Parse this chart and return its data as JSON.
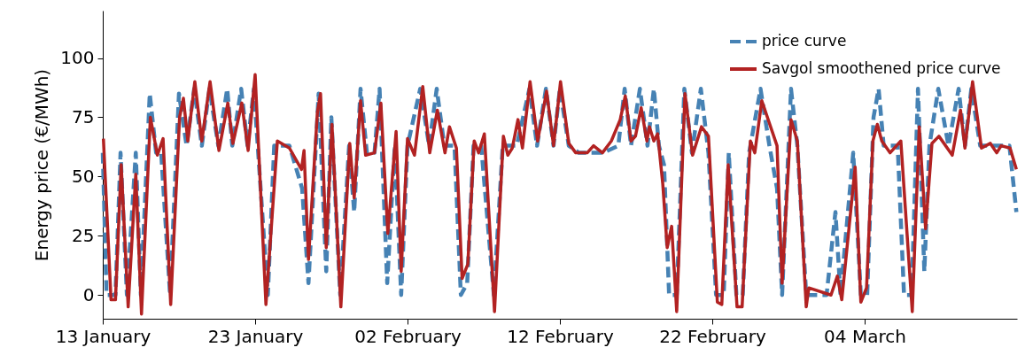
{
  "chart_data": {
    "type": "line",
    "ylabel": "Energy price (€/MWh)",
    "ylim": [
      -10,
      120
    ],
    "yticks": [
      0,
      25,
      50,
      75,
      100
    ],
    "xlim": [
      "--01-13",
      "--03-14"
    ],
    "xticks": [
      {
        "value": "--01-13",
        "label": "13 January"
      },
      {
        "value": "--01-23",
        "label": "23 January"
      },
      {
        "value": "--02-02",
        "label": "02 February"
      },
      {
        "value": "--02-12",
        "label": "12 February"
      },
      {
        "value": "--02-22",
        "label": "22 February"
      },
      {
        "value": "--03-04",
        "label": "04 March"
      }
    ],
    "grid": false,
    "legend": "top right",
    "marker": "none",
    "series": [
      {
        "name": "price curve",
        "color": "#4682b4",
        "line_style": "dashed",
        "x": [
          "--01-13T00:00",
          "--01-13T06:00",
          "--01-13T20:00",
          "--01-14T04:00",
          "--01-14T14:00",
          "--01-15T04:00",
          "--01-15T12:00",
          "--01-16T02:00",
          "--01-16T12:00",
          "--01-16T20:00",
          "--01-17T10:00",
          "--01-18T00:00",
          "--01-18T12:00",
          "--01-19T00:00",
          "--01-19T12:00",
          "--01-20T00:00",
          "--01-20T14:00",
          "--01-21T04:00",
          "--01-21T12:00",
          "--01-22T02:00",
          "--01-22T12:00",
          "--01-22T22:00",
          "--01-23T20:00",
          "--01-24T06:00",
          "--01-25T06:00",
          "--01-26T02:00",
          "--01-26T12:00",
          "--01-27T04:00",
          "--01-27T16:00",
          "--01-28T00:00",
          "--01-28T14:00",
          "--01-29T04:00",
          "--01-29T12:00",
          "--01-29T22:00",
          "--01-30T08:00",
          "--01-30T20:00",
          "--01-31T04:00",
          "--01-31T16:00",
          "--02-01T04:00",
          "--02-01T14:00",
          "--02-02T00:00",
          "--02-02T20:00",
          "--02-03T10:00",
          "--02-03T22:00",
          "--02-04T10:00",
          "--02-05T02:00",
          "--02-05T12:00",
          "--02-05T22:00",
          "--02-06T08:00",
          "--02-06T20:00",
          "--02-07T16:00",
          "--02-08T06:00",
          "--02-09T04:00",
          "--02-10T00:00",
          "--02-10T12:00",
          "--02-11T02:00",
          "--02-11T14:00",
          "--02-12T00:00",
          "--02-12T14:00",
          "--02-13T06:00",
          "--02-14T20:00",
          "--02-15T20:00",
          "--02-16T06:00",
          "--02-16T16:00",
          "--02-17T06:00",
          "--02-17T18:00",
          "--02-18T04:00",
          "--02-18T12:00",
          "--02-18T20:00",
          "--02-19T04:00",
          "--02-19T16:00",
          "--02-20T04:00",
          "--02-20T16:00",
          "--02-21T06:00",
          "--02-21T18:00",
          "--02-22T06:00",
          "--02-22T18:00",
          "--02-23T02:00",
          "--02-23T14:00",
          "--02-24T00:00",
          "--02-24T10:00",
          "--02-25T04:00",
          "--02-25T18:00",
          "--02-26T06:00",
          "--02-26T14:00",
          "--02-27T04:00",
          "--02-27T14:00",
          "--02-28T04:00",
          "--02-28T16:00",
          "--03-01T12:00",
          "--03-02T02:00",
          "--03-02T10:00",
          "--03-03T06:00",
          "--03-03T18:00",
          "--03-04T04:00",
          "--03-04T14:00",
          "--03-04T22:00",
          "--03-05T06:00",
          "--03-06T04:00",
          "--03-06T14:00",
          "--03-07T02:00",
          "--03-07T12:00",
          "--03-07T22:00",
          "--03-08T06:00",
          "--03-08T20:00",
          "--03-09T12:00",
          "--03-10T04:00",
          "--03-10T14:00",
          "--03-11T00:00",
          "--03-11T14:00",
          "--03-12T20:00",
          "--03-13T12:00",
          "--03-13T23:00"
        ],
        "values": [
          60,
          0,
          0,
          60,
          0,
          60,
          0,
          85,
          60,
          60,
          0,
          85,
          63,
          87,
          63,
          87,
          63,
          87,
          63,
          87,
          63,
          87,
          0,
          63,
          63,
          45,
          5,
          85,
          10,
          75,
          0,
          63,
          35,
          87,
          60,
          60,
          87,
          5,
          63,
          0,
          63,
          87,
          63,
          87,
          63,
          63,
          0,
          5,
          63,
          63,
          0,
          63,
          63,
          87,
          63,
          87,
          63,
          87,
          63,
          60,
          60,
          63,
          87,
          63,
          87,
          63,
          87,
          63,
          55,
          0,
          0,
          87,
          60,
          87,
          60,
          0,
          0,
          60,
          0,
          0,
          60,
          87,
          63,
          45,
          0,
          87,
          63,
          0,
          0,
          0,
          35,
          0,
          60,
          0,
          0,
          75,
          87,
          63,
          63,
          0,
          0,
          87,
          10,
          63,
          87,
          63,
          87,
          63,
          87,
          63,
          63,
          63,
          35
        ]
      },
      {
        "name": "Savgol smoothened price curve",
        "color": "#b22222",
        "line_style": "solid",
        "x": [
          "--01-13T01:00",
          "--01-13T13:00",
          "--01-13T20:00",
          "--01-14T05:00",
          "--01-14T16:00",
          "--01-15T04:00",
          "--01-15T13:00",
          "--01-16T03:00",
          "--01-16T14:00",
          "--01-16T23:00",
          "--01-17T11:00",
          "--01-18T01:00",
          "--01-18T07:00",
          "--01-18T14:00",
          "--01-19T01:00",
          "--01-19T12:00",
          "--01-20T01:00",
          "--01-20T15:00",
          "--01-21T05:00",
          "--01-21T13:00",
          "--01-22T03:00",
          "--01-22T13:00",
          "--01-23T00:00",
          "--01-23T17:00",
          "--01-24T11:00",
          "--01-25T06:00",
          "--01-26T01:00",
          "--01-26T05:00",
          "--01-26T12:00",
          "--01-27T02:00",
          "--01-27T07:00",
          "--01-27T16:00",
          "--01-28T01:00",
          "--01-28T15:00",
          "--01-29T05:00",
          "--01-29T12:00",
          "--01-29T22:00",
          "--01-30T06:00",
          "--01-30T20:00",
          "--01-31T06:00",
          "--01-31T17:00",
          "--02-01T06:00",
          "--02-01T14:00",
          "--02-02T00:00",
          "--02-02T11:00",
          "--02-03T00:00",
          "--02-03T11:00",
          "--02-03T23:00",
          "--02-04T11:00",
          "--02-04T18:00",
          "--02-05T05:00",
          "--02-05T14:00",
          "--02-05T23:00",
          "--02-06T09:00",
          "--02-06T16:00",
          "--02-07T01:00",
          "--02-07T17:00",
          "--02-08T07:00",
          "--02-08T14:00",
          "--02-08T21:00",
          "--02-09T06:00",
          "--02-09T13:00",
          "--02-10T01:00",
          "--02-10T13:00",
          "--02-11T03:00",
          "--02-11T14:00",
          "--02-12T01:00",
          "--02-12T14:00",
          "--02-13T01:00",
          "--02-13T19:00",
          "--02-14T05:00",
          "--02-14T19:00",
          "--02-15T09:00",
          "--02-15T23:00",
          "--02-16T07:00",
          "--02-16T16:00",
          "--02-16T23:00",
          "--02-17T08:00",
          "--02-17T17:00",
          "--02-17T21:00",
          "--02-18T04:00",
          "--02-18T10:00",
          "--02-18T18:00",
          "--02-19T01:00",
          "--02-19T08:00",
          "--02-19T16:00",
          "--02-20T05:00",
          "--02-20T17:00",
          "--02-21T07:00",
          "--02-21T18:00",
          "--02-22T08:00",
          "--02-22T15:00",
          "--02-23T01:00",
          "--02-23T15:00",
          "--02-23T23:00",
          "--02-24T12:00",
          "--02-24T19:00",
          "--02-25T06:00",
          "--02-26T06:00",
          "--02-26T14:00",
          "--02-27T04:00",
          "--02-27T14:00",
          "--02-28T04:00",
          "--02-28T08:00",
          "--03-01T19:00",
          "--03-02T05:00",
          "--03-02T12:00",
          "--03-03T09:00",
          "--03-03T18:00",
          "--03-04T03:00",
          "--03-04T13:00",
          "--03-04T20:00",
          "--03-05T03:00",
          "--03-05T16:00",
          "--03-06T09:00",
          "--03-07T03:00",
          "--03-07T14:00",
          "--03-08T00:00",
          "--03-08T10:00",
          "--03-08T21:00",
          "--03-09T18:00",
          "--03-10T07:00",
          "--03-10T14:00",
          "--03-11T02:00",
          "--03-11T16:00",
          "--03-12T06:00",
          "--03-12T16:00",
          "--03-12T23:00",
          "--03-13T13:00",
          "--03-13T23:00"
        ],
        "values": [
          66,
          -2,
          -2,
          55,
          -5,
          51,
          -8,
          75,
          59,
          66,
          -4,
          75,
          83,
          65,
          90,
          65,
          90,
          61,
          81,
          64,
          81,
          61,
          93,
          -4,
          65,
          62,
          53,
          61,
          15,
          77,
          85,
          20,
          72,
          -5,
          64,
          41,
          82,
          59,
          60,
          81,
          26,
          69,
          10,
          66,
          59,
          88,
          60,
          78,
          60,
          71,
          62,
          7,
          13,
          65,
          60,
          68,
          -7,
          67,
          59,
          62,
          74,
          62,
          90,
          65,
          86,
          63,
          90,
          64,
          60,
          60,
          63,
          60,
          65,
          74,
          84,
          65,
          67,
          79,
          65,
          71,
          65,
          68,
          47,
          20,
          29,
          -7,
          85,
          59,
          71,
          67,
          -3,
          -4,
          55,
          -5,
          -5,
          65,
          60,
          82,
          63,
          5,
          74,
          65,
          -5,
          3,
          0,
          8,
          -2,
          54,
          -3,
          3,
          65,
          72,
          65,
          60,
          65,
          -7,
          71,
          28,
          64,
          67,
          59,
          78,
          62,
          90,
          62,
          64,
          60,
          63,
          62,
          53
        ]
      }
    ]
  }
}
